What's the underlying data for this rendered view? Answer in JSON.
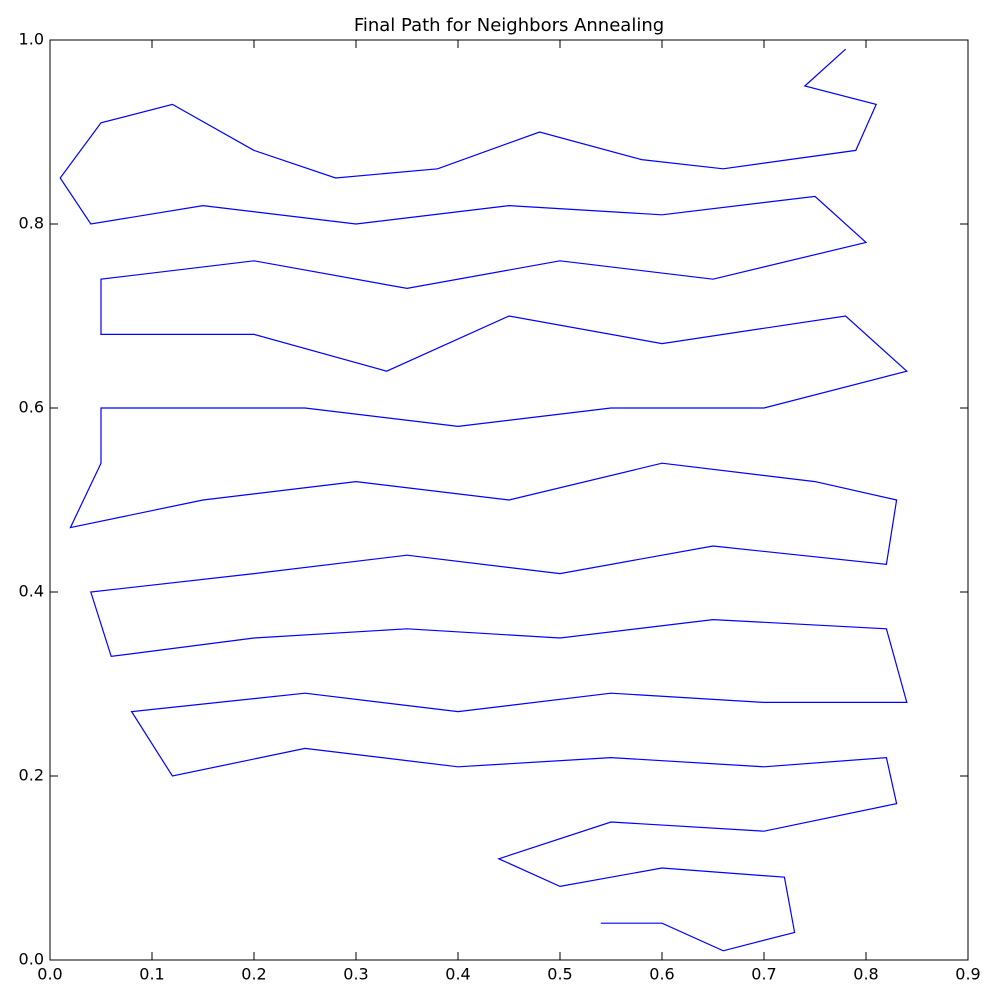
{
  "chart_data": {
    "type": "line",
    "title": "Final Path for Neighbors Annealing",
    "series": [
      {
        "color": "#0000ff",
        "x": [
          0.78,
          0.74,
          0.81,
          0.79,
          0.66,
          0.58,
          0.48,
          0.38,
          0.28,
          0.2,
          0.12,
          0.05,
          0.01,
          0.04,
          0.15,
          0.3,
          0.45,
          0.6,
          0.75,
          0.8,
          0.65,
          0.5,
          0.35,
          0.2,
          0.05,
          0.05,
          0.2,
          0.33,
          0.45,
          0.6,
          0.78,
          0.84,
          0.7,
          0.55,
          0.4,
          0.25,
          0.05,
          0.05,
          0.02,
          0.15,
          0.3,
          0.45,
          0.6,
          0.75,
          0.83,
          0.82,
          0.65,
          0.5,
          0.35,
          0.2,
          0.04,
          0.06,
          0.2,
          0.35,
          0.5,
          0.65,
          0.82,
          0.84,
          0.7,
          0.55,
          0.4,
          0.25,
          0.08,
          0.12,
          0.25,
          0.4,
          0.55,
          0.7,
          0.82,
          0.83,
          0.7,
          0.55,
          0.44,
          0.5,
          0.6,
          0.72,
          0.73,
          0.66,
          0.6,
          0.54
        ],
        "y": [
          0.99,
          0.95,
          0.93,
          0.88,
          0.86,
          0.87,
          0.9,
          0.86,
          0.85,
          0.88,
          0.93,
          0.91,
          0.85,
          0.8,
          0.82,
          0.8,
          0.82,
          0.81,
          0.83,
          0.78,
          0.74,
          0.76,
          0.73,
          0.76,
          0.74,
          0.68,
          0.68,
          0.64,
          0.7,
          0.67,
          0.7,
          0.64,
          0.6,
          0.6,
          0.58,
          0.6,
          0.6,
          0.54,
          0.47,
          0.5,
          0.52,
          0.5,
          0.54,
          0.52,
          0.5,
          0.43,
          0.45,
          0.42,
          0.44,
          0.42,
          0.4,
          0.33,
          0.35,
          0.36,
          0.35,
          0.37,
          0.36,
          0.28,
          0.28,
          0.29,
          0.27,
          0.29,
          0.27,
          0.2,
          0.23,
          0.21,
          0.22,
          0.21,
          0.22,
          0.17,
          0.14,
          0.15,
          0.11,
          0.08,
          0.1,
          0.09,
          0.03,
          0.01,
          0.04,
          0.04
        ]
      }
    ],
    "xlim": [
      0,
      0.9
    ],
    "ylim": [
      0,
      1
    ],
    "xticks": [
      {
        "value": 0,
        "label": "0.0"
      },
      0.1,
      0.2,
      0.3,
      0.4,
      0.5,
      0.6,
      0.7,
      0.8,
      0.9
    ],
    "yticks": [
      {
        "value": 0,
        "label": "0.0"
      },
      0.2,
      0.4,
      0.6,
      0.8,
      {
        "value": 1,
        "label": "1.0"
      }
    ]
  }
}
